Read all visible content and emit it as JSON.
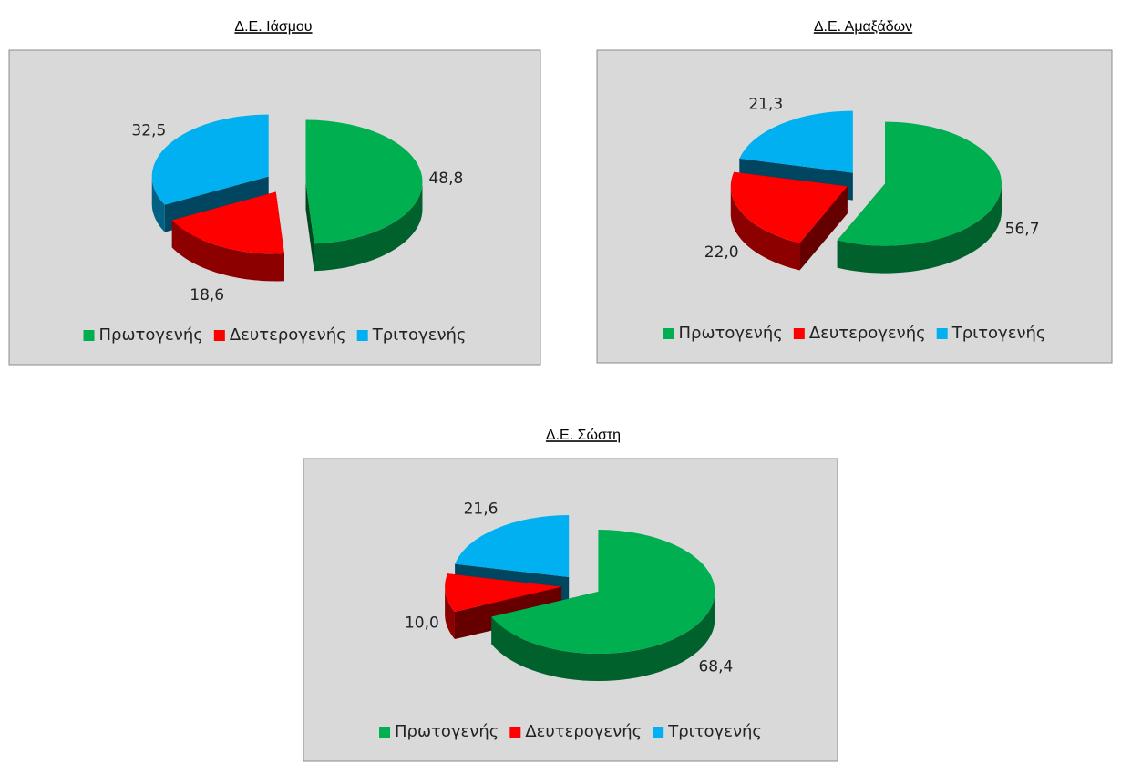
{
  "chart_data": [
    {
      "type": "pie",
      "title": "Δ.Ε. Ιάσμου",
      "categories": [
        "Πρωτογενής",
        "Δευτερογενής",
        "Τριτογενής"
      ],
      "values": [
        48.8,
        18.6,
        32.5
      ],
      "value_labels": [
        "48,8",
        "18,6",
        "32,5"
      ],
      "colors": [
        "#00b050",
        "#ff0000",
        "#00b0f0"
      ]
    },
    {
      "type": "pie",
      "title": "Δ.Ε. Αμαξάδων",
      "categories": [
        "Πρωτογενής",
        "Δευτερογενής",
        "Τριτογενής"
      ],
      "values": [
        56.7,
        22.0,
        21.3
      ],
      "value_labels": [
        "56,7",
        "22,0",
        "21,3"
      ],
      "colors": [
        "#00b050",
        "#ff0000",
        "#00b0f0"
      ]
    },
    {
      "type": "pie",
      "title": "Δ.Ε. Σώστη",
      "categories": [
        "Πρωτογενής",
        "Δευτερογενής",
        "Τριτογενής"
      ],
      "values": [
        68.4,
        10.0,
        21.6
      ],
      "value_labels": [
        "68,4",
        "10,0",
        "21,6"
      ],
      "colors": [
        "#00b050",
        "#ff0000",
        "#00b0f0"
      ]
    }
  ]
}
